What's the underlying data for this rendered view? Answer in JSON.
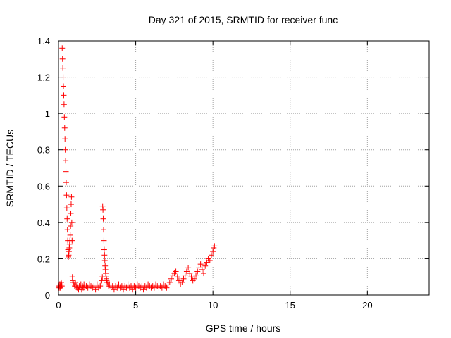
{
  "chart_data": {
    "type": "scatter",
    "title": "Day 321 of 2015, SRMTID for receiver func",
    "xlabel": "GPS time / hours",
    "ylabel": "SRMTID / TECUs",
    "xlim": [
      0,
      24
    ],
    "ylim": [
      0,
      1.4
    ],
    "xticks": [
      0,
      5,
      10,
      15,
      20
    ],
    "xtick_labels": [
      "0",
      "5",
      "10",
      "15",
      "20"
    ],
    "yticks": [
      0,
      0.2,
      0.4,
      0.6,
      0.8,
      1,
      1.2,
      1.4
    ],
    "ytick_labels": [
      "0",
      "0.2",
      "0.4",
      "0.6",
      "0.8",
      "1",
      "1.2",
      "1.4"
    ],
    "grid": true,
    "marker": "+",
    "color": "#ff0000",
    "series": [
      {
        "x": [
          0.02,
          0.05,
          0.08,
          0.1,
          0.12,
          0.14,
          0.16,
          0.18,
          0.2,
          0.22,
          0.24,
          0.26,
          0.28,
          0.3,
          0.32,
          0.34,
          0.36,
          0.38,
          0.4,
          0.42,
          0.44,
          0.46,
          0.48,
          0.5,
          0.52,
          0.54,
          0.56,
          0.58,
          0.6,
          0.62,
          0.64,
          0.66,
          0.68,
          0.7,
          0.72,
          0.74,
          0.76,
          0.78,
          0.8,
          0.82,
          0.84,
          0.86,
          0.88,
          0.9,
          0.92,
          0.95,
          1.0,
          1.05,
          1.1,
          1.15,
          1.2,
          1.25,
          1.3,
          1.35,
          1.4,
          1.45,
          1.5,
          1.55,
          1.6,
          1.65,
          1.7,
          1.8,
          1.9,
          2.0,
          2.1,
          2.2,
          2.3,
          2.4,
          2.5,
          2.6,
          2.7,
          2.75,
          2.8,
          2.84,
          2.86,
          2.88,
          2.9,
          2.92,
          2.94,
          2.96,
          2.98,
          3.0,
          3.02,
          3.04,
          3.06,
          3.08,
          3.1,
          3.12,
          3.15,
          3.2,
          3.25,
          3.3,
          3.4,
          3.5,
          3.6,
          3.7,
          3.8,
          3.9,
          4.0,
          4.1,
          4.2,
          4.3,
          4.4,
          4.5,
          4.6,
          4.7,
          4.8,
          4.9,
          5.0,
          5.1,
          5.2,
          5.3,
          5.4,
          5.5,
          5.6,
          5.7,
          5.8,
          5.9,
          6.0,
          6.1,
          6.2,
          6.3,
          6.4,
          6.5,
          6.6,
          6.7,
          6.8,
          6.9,
          7.0,
          7.1,
          7.2,
          7.3,
          7.4,
          7.5,
          7.6,
          7.7,
          7.8,
          7.9,
          8.0,
          8.1,
          8.2,
          8.3,
          8.4,
          8.5,
          8.6,
          8.7,
          8.8,
          8.9,
          9.0,
          9.1,
          9.2,
          9.3,
          9.4,
          9.5,
          9.6,
          9.7,
          9.8,
          9.9,
          10.0,
          10.05,
          10.1
        ],
        "y": [
          0.05,
          0.04,
          0.06,
          0.05,
          0.04,
          0.06,
          0.05,
          0.07,
          0.06,
          0.05,
          1.36,
          1.3,
          1.25,
          1.2,
          1.15,
          1.1,
          1.05,
          0.98,
          0.92,
          0.86,
          0.8,
          0.74,
          0.68,
          0.62,
          0.55,
          0.48,
          0.42,
          0.36,
          0.3,
          0.25,
          0.21,
          0.22,
          0.24,
          0.26,
          0.28,
          0.3,
          0.33,
          0.38,
          0.45,
          0.5,
          0.54,
          0.4,
          0.3,
          0.1,
          0.08,
          0.07,
          0.06,
          0.05,
          0.07,
          0.05,
          0.04,
          0.06,
          0.03,
          0.05,
          0.04,
          0.06,
          0.03,
          0.05,
          0.04,
          0.06,
          0.04,
          0.05,
          0.04,
          0.06,
          0.05,
          0.04,
          0.05,
          0.03,
          0.06,
          0.04,
          0.05,
          0.06,
          0.08,
          0.1,
          0.49,
          0.47,
          0.42,
          0.36,
          0.3,
          0.25,
          0.22,
          0.19,
          0.16,
          0.14,
          0.12,
          0.1,
          0.09,
          0.08,
          0.07,
          0.06,
          0.05,
          0.06,
          0.04,
          0.05,
          0.03,
          0.05,
          0.04,
          0.06,
          0.04,
          0.05,
          0.03,
          0.05,
          0.04,
          0.06,
          0.04,
          0.05,
          0.03,
          0.05,
          0.04,
          0.06,
          0.05,
          0.04,
          0.05,
          0.03,
          0.05,
          0.04,
          0.06,
          0.05,
          0.04,
          0.05,
          0.04,
          0.06,
          0.05,
          0.04,
          0.05,
          0.04,
          0.06,
          0.05,
          0.04,
          0.06,
          0.07,
          0.09,
          0.11,
          0.12,
          0.13,
          0.1,
          0.08,
          0.06,
          0.07,
          0.09,
          0.11,
          0.13,
          0.15,
          0.12,
          0.1,
          0.08,
          0.09,
          0.11,
          0.13,
          0.15,
          0.17,
          0.14,
          0.12,
          0.16,
          0.18,
          0.2,
          0.19,
          0.22,
          0.24,
          0.26,
          0.27
        ]
      }
    ]
  }
}
